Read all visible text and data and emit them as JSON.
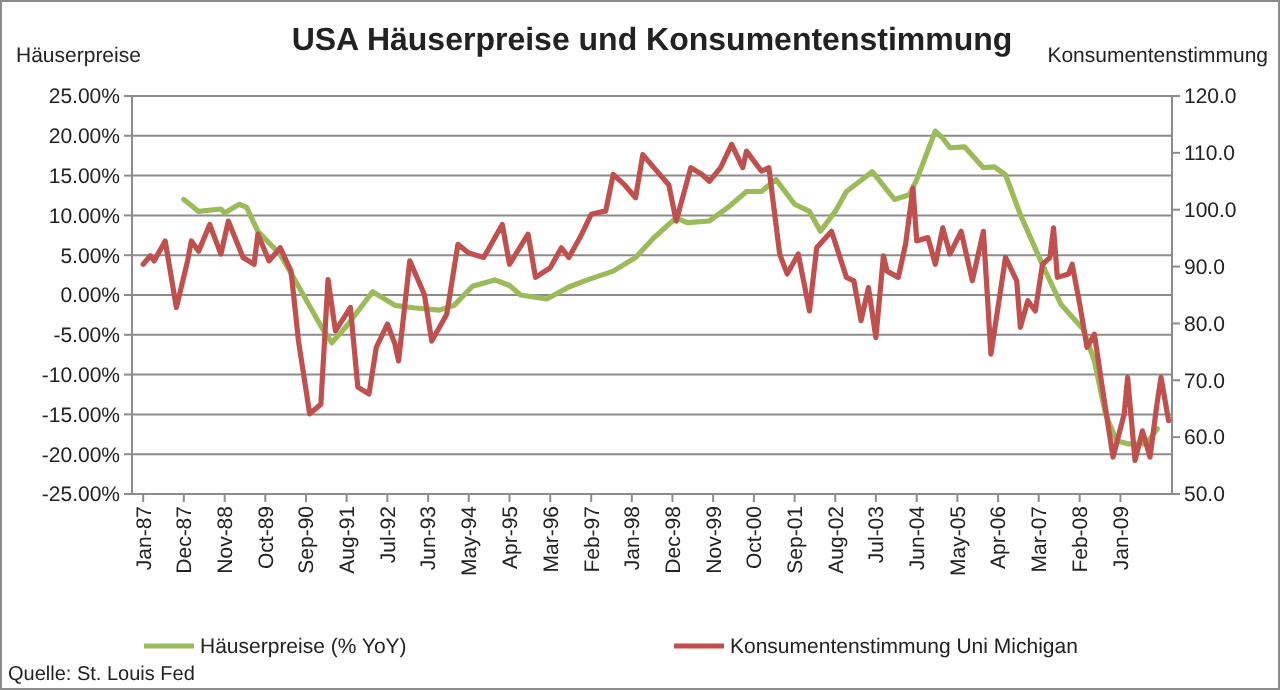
{
  "chart_data": {
    "type": "line",
    "title": "USA Häuserpreise und Konsumentenstimmung",
    "ylabel": "Häuserpreise",
    "y2label": "Konsumentenstimmung",
    "annotations": [
      "Quelle: St. Louis Fed"
    ],
    "xlim": [
      "1986-10",
      "2010-03"
    ],
    "xticks": [
      {
        "value": "1987-01",
        "label": "Jan-87"
      },
      {
        "value": "1987-12",
        "label": "Dec-87"
      },
      {
        "value": "1988-11",
        "label": "Nov-88"
      },
      {
        "value": "1989-10",
        "label": "Oct-89"
      },
      {
        "value": "1990-09",
        "label": "Sep-90"
      },
      {
        "value": "1991-08",
        "label": "Aug-91"
      },
      {
        "value": "1992-07",
        "label": "Jul-92"
      },
      {
        "value": "1993-06",
        "label": "Jun-93"
      },
      {
        "value": "1994-05",
        "label": "May-94"
      },
      {
        "value": "1995-04",
        "label": "Apr-95"
      },
      {
        "value": "1996-03",
        "label": "Mar-96"
      },
      {
        "value": "1997-02",
        "label": "Feb-97"
      },
      {
        "value": "1998-01",
        "label": "Jan-98"
      },
      {
        "value": "1998-12",
        "label": "Dec-98"
      },
      {
        "value": "1999-11",
        "label": "Nov-99"
      },
      {
        "value": "2000-10",
        "label": "Oct-00"
      },
      {
        "value": "2001-09",
        "label": "Sep-01"
      },
      {
        "value": "2002-08",
        "label": "Aug-02"
      },
      {
        "value": "2003-07",
        "label": "Jul-03"
      },
      {
        "value": "2004-06",
        "label": "Jun-04"
      },
      {
        "value": "2005-05",
        "label": "May-05"
      },
      {
        "value": "2006-04",
        "label": "Apr-06"
      },
      {
        "value": "2007-03",
        "label": "Mar-07"
      },
      {
        "value": "2008-02",
        "label": "Feb-08"
      },
      {
        "value": "2009-01",
        "label": "Jan-09"
      }
    ],
    "ylim": [
      -25,
      25
    ],
    "yticks": [
      {
        "value": -25,
        "label": "-25.00%"
      },
      {
        "value": -20,
        "label": "-20.00%"
      },
      {
        "value": -15,
        "label": "-15.00%"
      },
      {
        "value": -10,
        "label": "-10.00%"
      },
      {
        "value": -5,
        "label": "-5.00%"
      },
      {
        "value": 0,
        "label": "0.00%"
      },
      {
        "value": 5,
        "label": "5.00%"
      },
      {
        "value": 10,
        "label": "10.00%"
      },
      {
        "value": 15,
        "label": "15.00%"
      },
      {
        "value": 20,
        "label": "20.00%"
      },
      {
        "value": 25,
        "label": "25.00%"
      }
    ],
    "y2lim": [
      50,
      120
    ],
    "y2ticks": [
      {
        "value": 50,
        "label": "50.0"
      },
      {
        "value": 60,
        "label": "60.0"
      },
      {
        "value": 70,
        "label": "70.0"
      },
      {
        "value": 80,
        "label": "80.0"
      },
      {
        "value": 90,
        "label": "90.0"
      },
      {
        "value": 100,
        "label": "100.0"
      },
      {
        "value": 110,
        "label": "110.0"
      },
      {
        "value": 120,
        "label": "120.0"
      }
    ],
    "grid": "y",
    "legend": "bottom",
    "marker": "none",
    "line_style": "solid",
    "series": [
      {
        "name": "Häuserpreise (% YoY)",
        "color": "#9bbb59",
        "x": [
          "1987-12",
          "1988-04",
          "1988-10",
          "1988-11",
          "1989-03",
          "1989-05",
          "1989-08",
          "1990-02",
          "1990-07",
          "1991-01",
          "1991-04",
          "1991-08",
          "1992-03",
          "1992-09",
          "1993-02",
          "1993-09",
          "1994-01",
          "1994-06",
          "1994-12",
          "1995-04",
          "1995-07",
          "1996-02",
          "1996-08",
          "1997-01",
          "1997-08",
          "1998-02",
          "1998-07",
          "1999-01",
          "1999-04",
          "1999-10",
          "2000-03",
          "2000-08",
          "2000-12",
          "2001-04",
          "2001-09",
          "2002-01",
          "2002-04",
          "2002-08",
          "2002-11",
          "2003-06",
          "2003-12",
          "2004-04",
          "2004-06",
          "2004-11",
          "2005-01",
          "2005-03",
          "2005-07",
          "2005-12",
          "2006-03",
          "2006-06",
          "2006-10",
          "2007-04",
          "2007-09",
          "2008-03",
          "2008-06",
          "2008-09",
          "2008-12",
          "2009-03",
          "2009-08",
          "2009-11"
        ],
        "values": [
          12.0,
          10.5,
          10.8,
          10.3,
          11.4,
          11.0,
          8.0,
          5.1,
          1.1,
          -3.9,
          -6.0,
          -3.9,
          0.4,
          -1.3,
          -1.6,
          -1.9,
          -1.3,
          1.1,
          1.9,
          1.2,
          0.0,
          -0.5,
          1.0,
          1.9,
          3.0,
          4.7,
          7.2,
          9.7,
          9.1,
          9.3,
          11.0,
          13.0,
          13.0,
          14.5,
          11.4,
          10.5,
          8.0,
          10.5,
          13.0,
          15.5,
          12.0,
          12.6,
          14.5,
          20.6,
          19.7,
          18.5,
          18.6,
          16.0,
          16.1,
          15.1,
          10.1,
          3.8,
          -1.2,
          -4.3,
          -8.3,
          -15.0,
          -18.3,
          -18.7,
          -18.7,
          -16.8
        ]
      },
      {
        "name": "Konsumentenstimmung  Uni Michigan",
        "color": "#c0504d",
        "axis": "y2",
        "x": [
          "1987-01",
          "1987-03",
          "1987-04",
          "1987-07",
          "1987-10",
          "1988-01",
          "1988-02",
          "1988-04",
          "1988-07",
          "1988-10",
          "1988-12",
          "1989-04",
          "1989-07",
          "1989-08",
          "1989-11",
          "1990-02",
          "1990-05",
          "1990-07",
          "1990-10",
          "1991-01",
          "1991-03",
          "1991-05",
          "1991-09",
          "1991-11",
          "1992-02",
          "1992-04",
          "1992-07",
          "1992-09",
          "1992-10",
          "1993-01",
          "1993-05",
          "1993-07",
          "1993-11",
          "1994-02",
          "1994-05",
          "1994-09",
          "1995-02",
          "1995-04",
          "1995-09",
          "1995-11",
          "1996-03",
          "1996-06",
          "1996-08",
          "1996-11",
          "1997-02",
          "1997-06",
          "1997-08",
          "1997-11",
          "1998-02",
          "1998-04",
          "1998-07",
          "1998-11",
          "1999-01",
          "1999-05",
          "1999-08",
          "1999-10",
          "2000-01",
          "2000-04",
          "2000-07",
          "2000-08",
          "2000-12",
          "2001-02",
          "2001-05",
          "2001-07",
          "2001-10",
          "2002-01",
          "2002-03",
          "2002-07",
          "2002-11",
          "2003-01",
          "2003-03",
          "2003-05",
          "2003-07",
          "2003-09",
          "2003-10",
          "2004-01",
          "2004-03",
          "2004-05",
          "2004-06",
          "2004-09",
          "2004-11",
          "2005-01",
          "2005-03",
          "2005-06",
          "2005-09",
          "2005-12",
          "2006-02",
          "2006-06",
          "2006-09",
          "2006-10",
          "2006-12",
          "2007-02",
          "2007-04",
          "2007-06",
          "2007-07",
          "2007-08",
          "2007-11",
          "2007-12",
          "2008-02",
          "2008-04",
          "2008-06",
          "2008-08",
          "2008-11",
          "2009-02",
          "2009-03",
          "2009-05",
          "2009-07",
          "2009-09",
          "2009-11",
          "2009-12",
          "2010-02"
        ],
        "values": [
          90.4,
          91.9,
          91.0,
          94.5,
          82.8,
          91.0,
          94.5,
          92.7,
          97.4,
          92.2,
          98.0,
          91.6,
          90.4,
          95.7,
          91.0,
          93.3,
          89.2,
          76.9,
          64.1,
          65.8,
          87.7,
          78.7,
          82.8,
          68.8,
          67.6,
          75.8,
          79.9,
          76.4,
          73.4,
          91.0,
          85.1,
          76.9,
          81.6,
          93.9,
          92.4,
          91.6,
          97.4,
          90.4,
          95.7,
          88.1,
          89.8,
          93.3,
          91.6,
          95.1,
          99.2,
          99.8,
          106.2,
          104.4,
          102.1,
          109.7,
          107.4,
          104.4,
          98.0,
          107.4,
          106.2,
          105.0,
          107.4,
          111.5,
          107.4,
          110.3,
          106.8,
          107.4,
          92.2,
          88.7,
          92.2,
          82.2,
          93.3,
          96.2,
          88.1,
          87.5,
          80.5,
          86.3,
          77.5,
          91.9,
          89.2,
          88.1,
          93.9,
          103.8,
          94.5,
          95.1,
          90.4,
          96.8,
          92.2,
          96.2,
          87.5,
          96.2,
          74.6,
          91.6,
          87.5,
          79.3,
          84.0,
          82.2,
          90.4,
          91.6,
          96.8,
          88.1,
          88.7,
          90.4,
          83.4,
          75.8,
          78.1,
          69.3,
          56.5,
          64.1,
          70.5,
          55.9,
          61.1,
          56.5,
          66.4,
          70.5,
          62.9
        ]
      }
    ]
  }
}
